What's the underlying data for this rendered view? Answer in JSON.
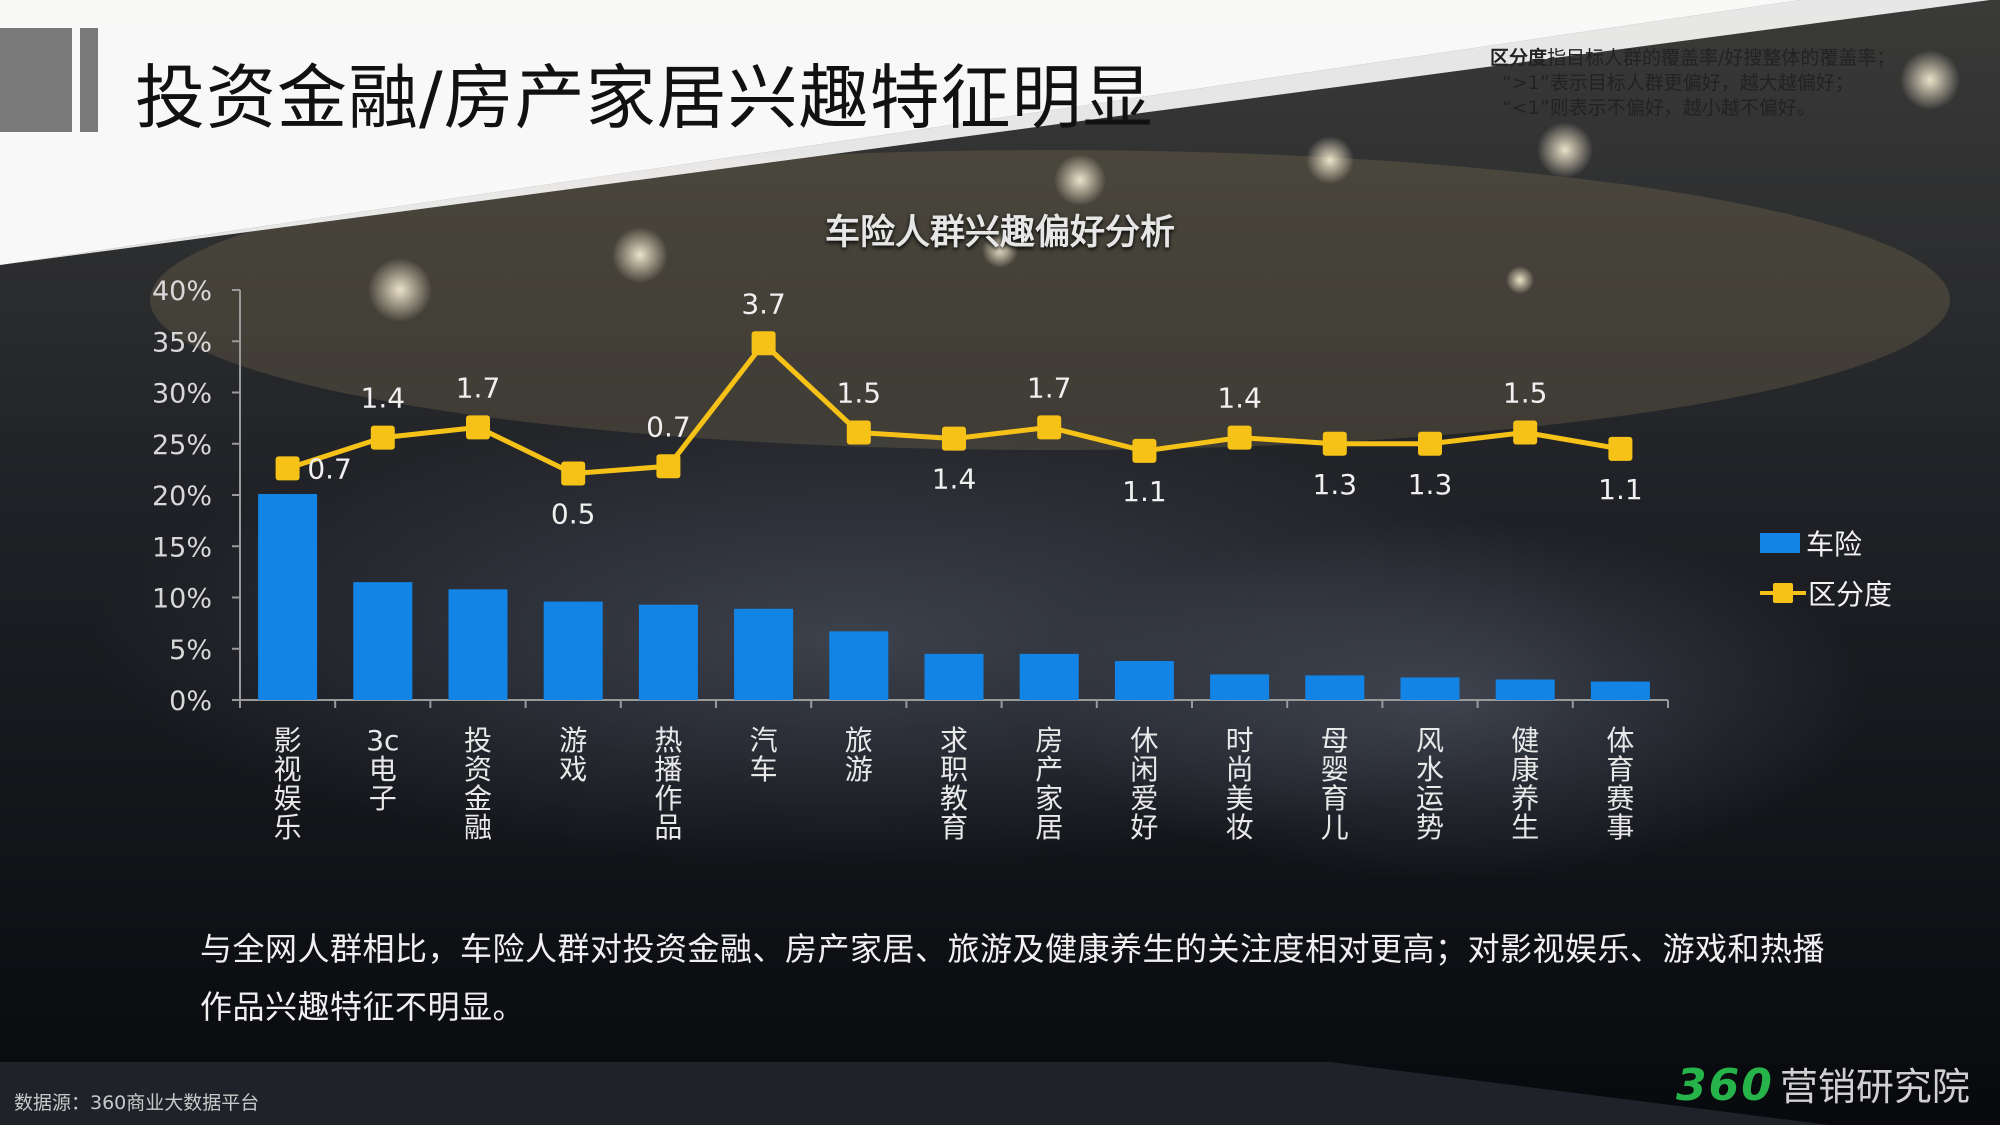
{
  "page": {
    "title": "投资金融/房产家居兴趣特征明显",
    "note": {
      "term": "区分度",
      "definition": "指目标人群的覆盖率/好搜整体的覆盖率；",
      "line2": "“>1”表示目标人群更偏好，越大越偏好；",
      "line3": "“<1”则表示不偏好，越小越不偏好。"
    },
    "summary": "与全网人群相比，车险人群对投资金融、房产家居、旅游及健康养生的关注度相对更高；对影视娱乐、游戏和热播作品兴趣特征不明显。",
    "source": "数据源：360商业大数据平台",
    "brand": {
      "number": "360",
      "text": "营销研究院"
    }
  },
  "chart_data": {
    "type": "bar",
    "title": "车险人群兴趣偏好分析",
    "categories": [
      "影视娱乐",
      "3c电子",
      "投资金融",
      "游戏",
      "热播作品",
      "汽车",
      "旅游",
      "求职教育",
      "房产家居",
      "休闲爱好",
      "时尚美妆",
      "母婴育儿",
      "风水运势",
      "健康养生",
      "体育赛事"
    ],
    "y_axis": {
      "min": 0,
      "max": 40,
      "step": 5,
      "unit": "%",
      "tick_labels": [
        "0%",
        "5%",
        "10%",
        "15%",
        "20%",
        "25%",
        "30%",
        "35%",
        "40%"
      ]
    },
    "series": [
      {
        "name": "车险",
        "type": "bar",
        "color": "#1284e6",
        "values": [
          20.1,
          11.5,
          10.8,
          9.6,
          9.3,
          8.9,
          6.7,
          4.5,
          4.5,
          3.8,
          2.5,
          2.4,
          2.2,
          2.0,
          1.8
        ]
      },
      {
        "name": "区分度",
        "type": "line",
        "color": "#f6c218",
        "marker": "square",
        "plotted_on_axis": "percent",
        "values": [
          0.7,
          1.4,
          1.7,
          0.5,
          0.7,
          3.7,
          1.5,
          1.4,
          1.7,
          1.1,
          1.4,
          1.3,
          1.3,
          1.5,
          1.1
        ],
        "plotted_y": [
          22.6,
          25.6,
          26.6,
          22.1,
          22.8,
          34.8,
          26.1,
          25.5,
          26.6,
          24.3,
          25.6,
          25.0,
          25.0,
          26.1,
          24.5
        ],
        "labels": [
          "0.7",
          "1.4",
          "1.7",
          "0.5",
          "0.7",
          "3.7",
          "1.5",
          "1.4",
          "1.7",
          "1.1",
          "1.4",
          "1.3",
          "1.3",
          "1.5",
          "1.1"
        ]
      }
    ],
    "legend_position": "right",
    "grid": false
  }
}
